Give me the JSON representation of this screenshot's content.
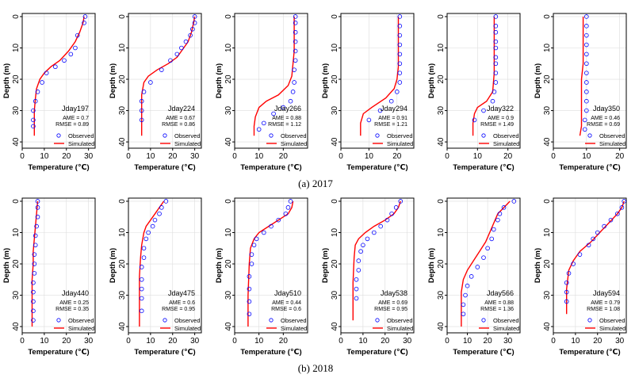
{
  "captions": [
    "(a)  2017",
    "(b)  2018"
  ],
  "colors": {
    "observed": "#0000ff",
    "simulated": "#ff0000",
    "grid": "#dddddd",
    "axis": "#000000"
  },
  "chart_data": [
    {
      "type": "line",
      "label": "Jday197",
      "ame": "AME = 0.7",
      "rmse": "RMSE = 0.89",
      "xlabel": "Temperature (℃)",
      "ylabel": "Depth (m)",
      "xlim": [
        0,
        33
      ],
      "ylim": [
        42,
        -1
      ],
      "xticks": [
        "0",
        "10",
        "20",
        "30"
      ],
      "yticks": [
        "0",
        "10",
        "20",
        "30",
        "40"
      ],
      "legend": [
        "Observed",
        "Simulated"
      ],
      "legend_position": "lower-right",
      "series": [
        {
          "name": "Observed",
          "x": [
            28.5,
            28,
            25,
            24,
            22,
            19,
            15,
            11,
            9,
            7,
            6,
            5,
            5,
            5
          ],
          "y": [
            0,
            2,
            6,
            10,
            12,
            14,
            16,
            18,
            21,
            24,
            27,
            30,
            33,
            35
          ]
        },
        {
          "name": "Simulated",
          "x": [
            28,
            27.5,
            26,
            24,
            21,
            17,
            13,
            10,
            8,
            6.5,
            6,
            5.5,
            5.5,
            5.5
          ],
          "y": [
            0,
            2,
            5,
            8,
            11,
            14,
            16,
            18,
            20,
            23,
            26,
            30,
            35,
            38
          ]
        }
      ]
    },
    {
      "type": "line",
      "label": "Jday224",
      "ame": "AME = 0.67",
      "rmse": "RMSE = 0.86",
      "xlabel": "Temperature (℃)",
      "ylabel": "Depth (m)",
      "xlim": [
        0,
        33
      ],
      "ylim": [
        42,
        -1
      ],
      "xticks": [
        "0",
        "10",
        "20",
        "30"
      ],
      "yticks": [
        "0",
        "10",
        "20",
        "30",
        "40"
      ],
      "legend": [
        "Observed",
        "Simulated"
      ],
      "legend_position": "lower-right",
      "series": [
        {
          "name": "Observed",
          "x": [
            30,
            30,
            29,
            28,
            26,
            24,
            22,
            19,
            15,
            10,
            7,
            6,
            6,
            6
          ],
          "y": [
            0,
            2,
            4,
            6,
            8,
            10,
            12,
            14,
            17,
            21,
            24,
            27,
            30,
            33
          ]
        },
        {
          "name": "Simulated",
          "x": [
            30,
            29.5,
            28.5,
            27,
            25,
            22,
            18,
            13,
            9,
            7,
            6,
            6,
            6
          ],
          "y": [
            0,
            2,
            5,
            8,
            10,
            13,
            15,
            17,
            19,
            21,
            25,
            30,
            38
          ]
        }
      ]
    },
    {
      "type": "line",
      "label": "Jday266",
      "ame": "AME = 0.88",
      "rmse": "RMSE = 1.12",
      "xlabel": "Temperature (℃)",
      "ylabel": "Depth (m)",
      "xlim": [
        0,
        30
      ],
      "ylim": [
        42,
        -1
      ],
      "xticks": [
        "0",
        "10",
        "20"
      ],
      "yticks": [
        "0",
        "10",
        "20",
        "30",
        "40"
      ],
      "legend": [
        "Observed",
        "Simulated"
      ],
      "legend_position": "lower-right",
      "series": [
        {
          "name": "Observed",
          "x": [
            25,
            25,
            25,
            25,
            25,
            25,
            24.5,
            24.5,
            24,
            23,
            20,
            16,
            12,
            10
          ],
          "y": [
            0,
            2,
            5,
            8,
            11,
            14,
            17,
            21,
            24,
            27,
            29,
            31,
            34,
            36
          ]
        },
        {
          "name": "Simulated",
          "x": [
            24.5,
            24.5,
            24.5,
            24.5,
            24,
            23.5,
            22,
            18,
            13,
            10,
            8.5,
            8,
            8
          ],
          "y": [
            0,
            3,
            7,
            11,
            15,
            19,
            22,
            25,
            27,
            29,
            32,
            35,
            38
          ]
        }
      ]
    },
    {
      "type": "line",
      "label": "Jday294",
      "ame": "AME = 0.91",
      "rmse": "RMSE = 1.21",
      "xlabel": "Temperature (℃)",
      "ylabel": "Depth (m)",
      "xlim": [
        0,
        26
      ],
      "ylim": [
        42,
        -1
      ],
      "xticks": [
        "0",
        "10",
        "20"
      ],
      "yticks": [
        "0",
        "10",
        "20",
        "30",
        "40"
      ],
      "legend": [
        "Observed",
        "Simulated"
      ],
      "legend_position": "lower-right",
      "series": [
        {
          "name": "Observed",
          "x": [
            21,
            21,
            21,
            21,
            21,
            21,
            21,
            21,
            20,
            18,
            14,
            10
          ],
          "y": [
            0,
            3,
            6,
            9,
            12,
            15,
            18,
            21,
            24,
            27,
            30,
            33
          ]
        },
        {
          "name": "Simulated",
          "x": [
            20.5,
            20.5,
            20.5,
            20.5,
            20.5,
            20,
            19,
            16,
            11,
            8,
            7,
            7
          ],
          "y": [
            0,
            4,
            8,
            12,
            16,
            20,
            23,
            26,
            29,
            31,
            34,
            38
          ]
        }
      ]
    },
    {
      "type": "line",
      "label": "Jday322",
      "ame": "AME = 0.9",
      "rmse": "RMSE = 1.49",
      "xlabel": "Temperature (℃)",
      "ylabel": "Depth (m)",
      "xlim": [
        0,
        24
      ],
      "ylim": [
        42,
        -1
      ],
      "xticks": [
        "0",
        "10",
        "20"
      ],
      "yticks": [
        "0",
        "10",
        "20",
        "30",
        "40"
      ],
      "legend": [
        "Observed",
        "Simulated"
      ],
      "legend_position": "lower-right",
      "series": [
        {
          "name": "Observed",
          "x": [
            16,
            16,
            16,
            16,
            16,
            16,
            16,
            16,
            16,
            15.5,
            15,
            12,
            9
          ],
          "y": [
            0,
            3,
            5,
            8,
            10,
            13,
            15,
            18,
            21,
            24,
            27,
            30,
            33
          ]
        },
        {
          "name": "Simulated",
          "x": [
            15.5,
            15.5,
            15.5,
            15.5,
            15.5,
            15,
            13,
            10,
            9,
            8.5,
            8.5
          ],
          "y": [
            0,
            4,
            8,
            12,
            18,
            24,
            27,
            29,
            31,
            34,
            38
          ]
        }
      ]
    },
    {
      "type": "line",
      "label": "Jday350",
      "ame": "AME = 0.46",
      "rmse": "RMSE = 0.69",
      "xlabel": "Temperature (℃)",
      "ylabel": "Depth (m)",
      "xlim": [
        0,
        22
      ],
      "ylim": [
        42,
        -1
      ],
      "xticks": [
        "0",
        "10",
        "20"
      ],
      "yticks": [
        "0",
        "10",
        "20",
        "30",
        "40"
      ],
      "legend": [
        "Observed",
        "Simulated"
      ],
      "legend_position": "lower-right",
      "series": [
        {
          "name": "Observed",
          "x": [
            10,
            10,
            10,
            10,
            10,
            10,
            10,
            10,
            10,
            10,
            10,
            9.5,
            9.5
          ],
          "y": [
            0,
            3,
            6,
            9,
            12,
            15,
            18,
            21,
            24,
            27,
            30,
            33,
            36
          ]
        },
        {
          "name": "Simulated",
          "x": [
            9,
            9,
            9,
            9,
            8.5,
            8.5,
            8.5,
            8.5,
            8
          ],
          "y": [
            0,
            5,
            10,
            15,
            20,
            25,
            30,
            35,
            38
          ]
        }
      ]
    },
    {
      "type": "line",
      "label": "Jday440",
      "ame": "AME = 0.25",
      "rmse": "RMSE = 0.35",
      "xlabel": "Temperature (℃)",
      "ylabel": "Depth (m)",
      "xlim": [
        0,
        33
      ],
      "ylim": [
        42,
        -1
      ],
      "xticks": [
        "0",
        "10",
        "20",
        "30"
      ],
      "yticks": [
        "0",
        "10",
        "20",
        "30",
        "40"
      ],
      "legend": [
        "Observed",
        "Simulated"
      ],
      "legend_position": "lower-right",
      "series": [
        {
          "name": "Observed",
          "x": [
            7,
            7,
            7,
            6.5,
            6,
            6,
            5.5,
            5.5,
            5.5,
            5,
            5,
            5,
            5,
            5
          ],
          "y": [
            0,
            2,
            5,
            8,
            11,
            14,
            17,
            20,
            23,
            26,
            29,
            32,
            35,
            38
          ]
        },
        {
          "name": "Simulated",
          "x": [
            7,
            6.5,
            6,
            5.5,
            5,
            5,
            4.5,
            4.5,
            4.5,
            4.5
          ],
          "y": [
            0,
            4,
            8,
            12,
            16,
            20,
            25,
            30,
            35,
            40
          ]
        }
      ]
    },
    {
      "type": "line",
      "label": "Jday475",
      "ame": "AME = 0.6",
      "rmse": "RMSE = 0.95",
      "xlabel": "Temperature (℃)",
      "ylabel": "Depth (m)",
      "xlim": [
        0,
        33
      ],
      "ylim": [
        42,
        -1
      ],
      "xticks": [
        "0",
        "10",
        "20",
        "30"
      ],
      "yticks": [
        "0",
        "10",
        "20",
        "30",
        "40"
      ],
      "legend": [
        "Observed",
        "Simulated"
      ],
      "legend_position": "lower-right",
      "series": [
        {
          "name": "Observed",
          "x": [
            17,
            15,
            14,
            12,
            11,
            9,
            8,
            7,
            7,
            6,
            6,
            6,
            6,
            6
          ],
          "y": [
            0,
            2,
            4,
            6,
            8,
            10,
            12,
            15,
            18,
            21,
            25,
            28,
            31,
            35
          ]
        },
        {
          "name": "Simulated",
          "x": [
            16,
            14,
            12,
            10,
            8,
            7,
            6,
            5.5,
            5,
            5,
            5
          ],
          "y": [
            0,
            2,
            4,
            6,
            8,
            10,
            14,
            18,
            24,
            30,
            40
          ]
        }
      ]
    },
    {
      "type": "line",
      "label": "Jday510",
      "ame": "AME = 0.44",
      "rmse": "RMSE = 0.6",
      "xlabel": "Temperature (℃)",
      "ylabel": "Depth (m)",
      "xlim": [
        0,
        30
      ],
      "ylim": [
        42,
        -1
      ],
      "xticks": [
        "0",
        "10",
        "20"
      ],
      "yticks": [
        "0",
        "10",
        "20",
        "30",
        "40"
      ],
      "legend": [
        "Observed",
        "Simulated"
      ],
      "legend_position": "lower-right",
      "series": [
        {
          "name": "Observed",
          "x": [
            23,
            22,
            21,
            18,
            15,
            12,
            9,
            8,
            7,
            7,
            6,
            6,
            6,
            6
          ],
          "y": [
            0,
            2,
            4,
            6,
            8,
            10,
            12,
            14,
            17,
            20,
            24,
            28,
            32,
            36
          ]
        },
        {
          "name": "Simulated",
          "x": [
            24,
            23.5,
            22,
            18,
            14,
            10,
            8,
            6.5,
            6,
            5.5,
            5.5
          ],
          "y": [
            0,
            2,
            4,
            6,
            8,
            10,
            12,
            15,
            20,
            30,
            40
          ]
        }
      ]
    },
    {
      "type": "line",
      "label": "Jday538",
      "ame": "AME = 0.69",
      "rmse": "RMSE = 0.95",
      "xlabel": "Temperature (℃)",
      "ylabel": "Depth (m)",
      "xlim": [
        0,
        33
      ],
      "ylim": [
        42,
        -1
      ],
      "xticks": [
        "0",
        "10",
        "20",
        "30"
      ],
      "yticks": [
        "0",
        "10",
        "20",
        "30",
        "40"
      ],
      "legend": [
        "Observed",
        "Simulated"
      ],
      "legend_position": "lower-right",
      "series": [
        {
          "name": "Observed",
          "x": [
            27,
            25,
            23,
            21,
            18,
            15,
            12,
            10,
            9,
            8,
            8,
            7,
            7,
            7
          ],
          "y": [
            0,
            2,
            4,
            6,
            8,
            10,
            12,
            14,
            16,
            19,
            22,
            25,
            28,
            31
          ]
        },
        {
          "name": "Simulated",
          "x": [
            27,
            26,
            24,
            20,
            15,
            11,
            8,
            6.5,
            6,
            5.5,
            5.5
          ],
          "y": [
            0,
            2,
            4,
            6,
            8,
            10,
            12,
            14,
            18,
            26,
            38
          ]
        }
      ]
    },
    {
      "type": "line",
      "label": "Jday566",
      "ame": "AME = 0.88",
      "rmse": "RMSE = 1.36",
      "xlabel": "Temperature (℃)",
      "ylabel": "Depth (m)",
      "xlim": [
        0,
        36
      ],
      "ylim": [
        42,
        -1
      ],
      "xticks": [
        "0",
        "10",
        "20",
        "30"
      ],
      "yticks": [
        "0",
        "10",
        "20",
        "30",
        "40"
      ],
      "legend": [
        "Observed",
        "Simulated"
      ],
      "legend_position": "lower-right",
      "series": [
        {
          "name": "Observed",
          "x": [
            33,
            28,
            26,
            25,
            23,
            22,
            20,
            18,
            15,
            12,
            10,
            9,
            8,
            8
          ],
          "y": [
            0,
            2,
            4,
            6,
            9,
            12,
            15,
            18,
            21,
            24,
            27,
            30,
            33,
            36
          ]
        },
        {
          "name": "Simulated",
          "x": [
            31,
            28,
            25,
            23,
            21,
            19,
            16,
            13,
            10,
            8,
            7,
            7,
            7
          ],
          "y": [
            0,
            2,
            4,
            7,
            10,
            13,
            16,
            19,
            22,
            25,
            29,
            34,
            40
          ]
        }
      ]
    },
    {
      "type": "line",
      "label": "Jday594",
      "ame": "AME = 0.79",
      "rmse": "RMSE = 1.08",
      "xlabel": "Temperature (℃)",
      "ylabel": "Depth (m)",
      "xlim": [
        0,
        33
      ],
      "ylim": [
        42,
        -1
      ],
      "xticks": [
        "0",
        "10",
        "20",
        "30"
      ],
      "yticks": [
        "0",
        "10",
        "20",
        "30",
        "40"
      ],
      "legend": [
        "Observed",
        "Simulated"
      ],
      "legend_position": "lower-right",
      "series": [
        {
          "name": "Observed",
          "x": [
            32,
            31,
            29,
            26,
            23,
            20,
            18,
            16,
            12,
            9,
            7,
            6,
            6,
            6
          ],
          "y": [
            0,
            2,
            4,
            6,
            8,
            10,
            12,
            14,
            17,
            20,
            23,
            26,
            29,
            32
          ]
        },
        {
          "name": "Simulated",
          "x": [
            32,
            31,
            29,
            25,
            21,
            17,
            12,
            9,
            7,
            6,
            6
          ],
          "y": [
            0,
            2,
            4,
            7,
            10,
            13,
            16,
            19,
            22,
            28,
            36
          ]
        }
      ]
    }
  ]
}
